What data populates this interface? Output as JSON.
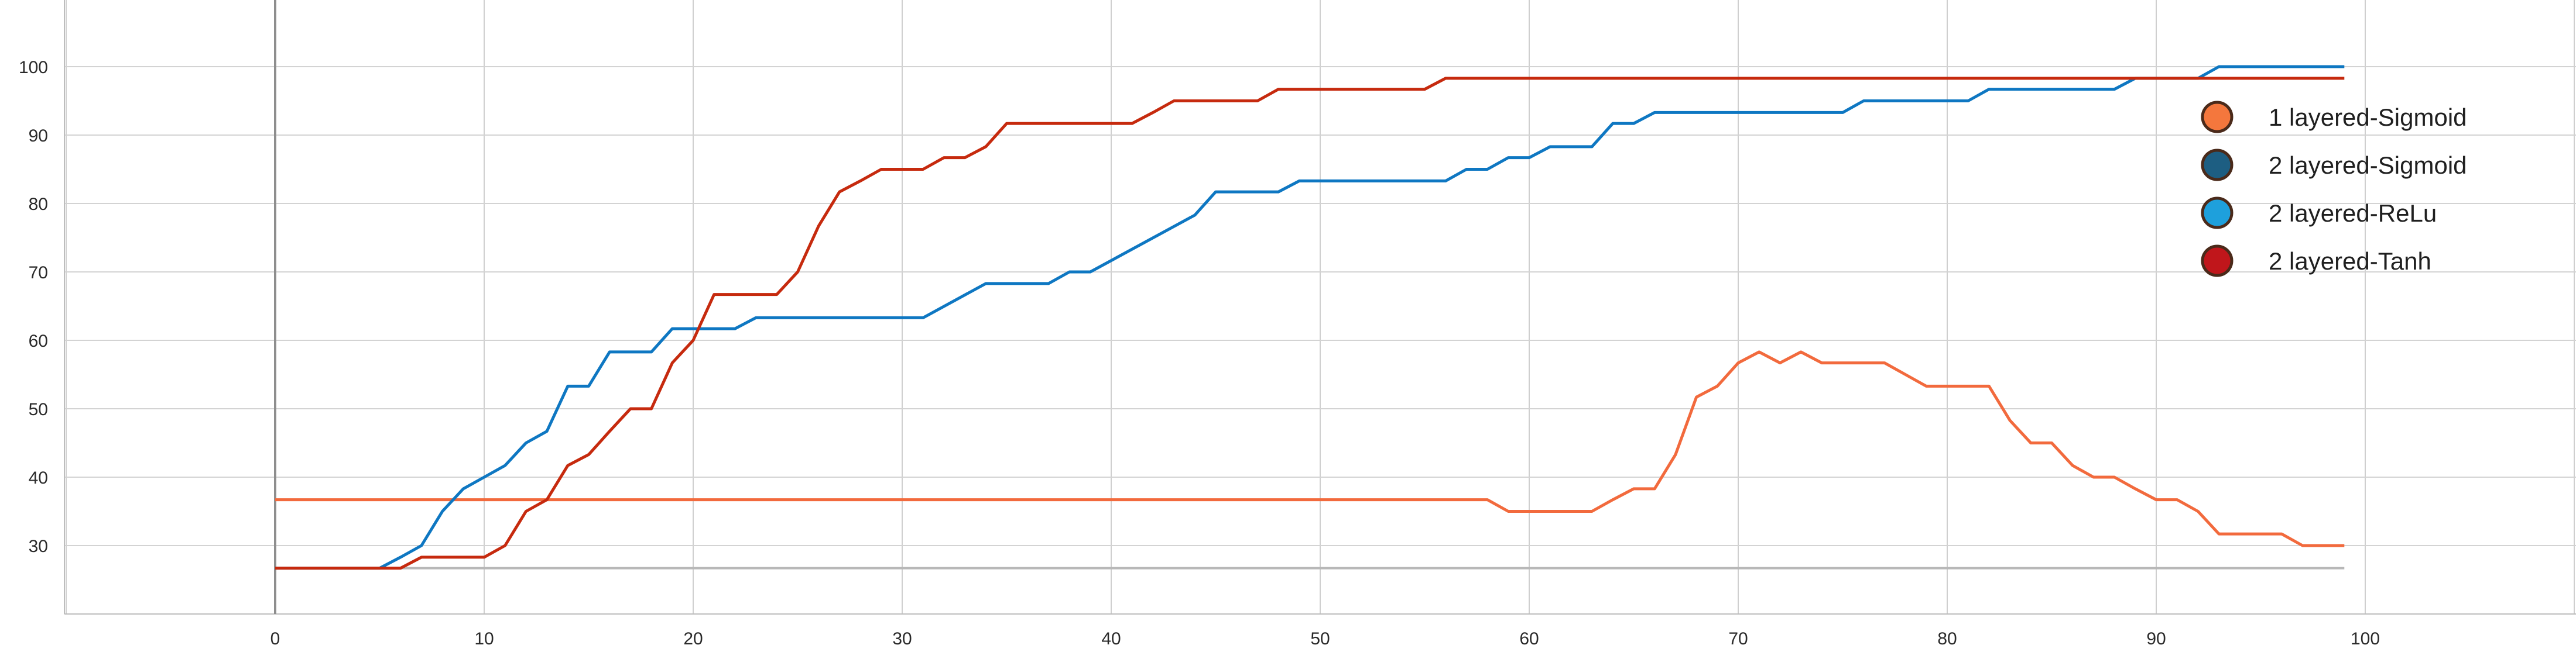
{
  "chart_data": {
    "type": "line",
    "title": "",
    "xlabel": "",
    "ylabel": "",
    "xlim": [
      -10,
      110
    ],
    "ylim": [
      20,
      110
    ],
    "grid": true,
    "legend_position": "top-right",
    "x_ticks": [
      0,
      10,
      20,
      30,
      40,
      50,
      60,
      70,
      80,
      90,
      100
    ],
    "y_ticks": [
      30,
      40,
      50,
      60,
      70,
      80,
      90,
      100
    ],
    "baseline": 26.7,
    "legend": [
      {
        "name": "1 layered-Sigmoid",
        "color": "#F4773D"
      },
      {
        "name": "2 layered-Sigmoid",
        "color": "#1D5E82"
      },
      {
        "name": "2 layered-ReLu",
        "color": "#1EA0DC"
      },
      {
        "name": "2 layered-Tanh",
        "color": "#C0161B"
      }
    ],
    "series": [
      {
        "name": "1 layered-Sigmoid",
        "color": "#F26A3D",
        "points": [
          [
            0,
            36.7
          ],
          [
            58,
            36.7
          ],
          [
            59,
            35
          ],
          [
            63,
            35
          ],
          [
            64,
            36.7
          ],
          [
            65,
            38.3
          ],
          [
            66,
            38.3
          ],
          [
            67,
            43.3
          ],
          [
            68,
            51.7
          ],
          [
            69,
            53.3
          ],
          [
            70,
            56.7
          ],
          [
            71,
            58.3
          ],
          [
            72,
            56.7
          ],
          [
            73,
            58.3
          ],
          [
            74,
            56.7
          ],
          [
            77,
            56.7
          ],
          [
            78,
            55
          ],
          [
            79,
            53.3
          ],
          [
            82,
            53.3
          ],
          [
            83,
            48.3
          ],
          [
            84,
            45
          ],
          [
            85,
            45
          ],
          [
            86,
            41.7
          ],
          [
            87,
            40
          ],
          [
            88,
            40
          ],
          [
            89,
            38.3
          ],
          [
            90,
            36.7
          ],
          [
            91,
            36.7
          ],
          [
            92,
            35
          ],
          [
            93,
            31.7
          ],
          [
            96,
            31.7
          ],
          [
            97,
            30
          ],
          [
            99,
            30
          ]
        ]
      },
      {
        "name": "2 layered-ReLu",
        "color": "#0E77C2",
        "points": [
          [
            0,
            26.7
          ],
          [
            5,
            26.7
          ],
          [
            6,
            28.3
          ],
          [
            7,
            30
          ],
          [
            8,
            35
          ],
          [
            9,
            38.3
          ],
          [
            10,
            40
          ],
          [
            11,
            41.7
          ],
          [
            12,
            45
          ],
          [
            13,
            46.7
          ],
          [
            14,
            53.3
          ],
          [
            15,
            53.3
          ],
          [
            16,
            58.3
          ],
          [
            18,
            58.3
          ],
          [
            19,
            61.7
          ],
          [
            22,
            61.7
          ],
          [
            23,
            63.3
          ],
          [
            31,
            63.3
          ],
          [
            34,
            68.3
          ],
          [
            37,
            68.3
          ],
          [
            38,
            70
          ],
          [
            39,
            70
          ],
          [
            44,
            78.3
          ],
          [
            45,
            81.7
          ],
          [
            48,
            81.7
          ],
          [
            49,
            83.3
          ],
          [
            56,
            83.3
          ],
          [
            57,
            85
          ],
          [
            58,
            85
          ],
          [
            59,
            86.7
          ],
          [
            60,
            86.7
          ],
          [
            61,
            88.3
          ],
          [
            63,
            88.3
          ],
          [
            64,
            91.7
          ],
          [
            65,
            91.7
          ],
          [
            66,
            93.3
          ],
          [
            75,
            93.3
          ],
          [
            76,
            95
          ],
          [
            81,
            95
          ],
          [
            82,
            96.7
          ],
          [
            88,
            96.7
          ],
          [
            89,
            98.3
          ],
          [
            92,
            98.3
          ],
          [
            93,
            100
          ],
          [
            99,
            100
          ]
        ]
      },
      {
        "name": "2 layered-Tanh",
        "color": "#C62A0E",
        "points": [
          [
            0,
            26.7
          ],
          [
            6,
            26.7
          ],
          [
            7,
            28.3
          ],
          [
            10,
            28.3
          ],
          [
            11,
            30
          ],
          [
            12,
            35
          ],
          [
            13,
            36.7
          ],
          [
            14,
            41.7
          ],
          [
            15,
            43.3
          ],
          [
            16,
            46.7
          ],
          [
            17,
            50
          ],
          [
            18,
            50
          ],
          [
            19,
            56.7
          ],
          [
            20,
            60
          ],
          [
            21,
            66.7
          ],
          [
            24,
            66.7
          ],
          [
            25,
            70
          ],
          [
            26,
            76.7
          ],
          [
            27,
            81.7
          ],
          [
            28,
            83.3
          ],
          [
            29,
            85
          ],
          [
            31,
            85
          ],
          [
            32,
            86.7
          ],
          [
            33,
            86.7
          ],
          [
            34,
            88.3
          ],
          [
            35,
            91.7
          ],
          [
            41,
            91.7
          ],
          [
            42,
            93.3
          ],
          [
            43,
            95
          ],
          [
            47,
            95
          ],
          [
            48,
            96.7
          ],
          [
            55,
            96.7
          ],
          [
            56,
            98.3
          ],
          [
            99,
            98.3
          ]
        ]
      }
    ]
  }
}
